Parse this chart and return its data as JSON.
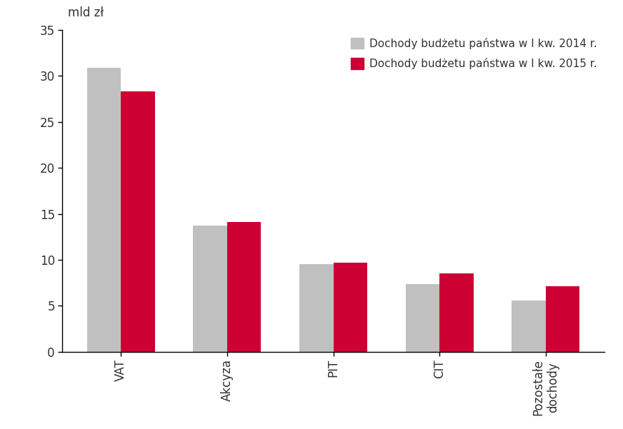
{
  "categories": [
    "VAT",
    "Akcyza",
    "PIT",
    "CIT",
    "Pozostałe\ndochody"
  ],
  "values_2014": [
    30.9,
    13.7,
    9.5,
    7.4,
    5.6
  ],
  "values_2015": [
    28.3,
    14.1,
    9.7,
    8.5,
    7.1
  ],
  "color_2014": "#c0c0c0",
  "color_2015": "#cc0033",
  "ylabel_text": "mld zł",
  "legend_2014": "Dochody budżetu państwa w I kw. 2014 r.",
  "legend_2015": "Dochody budżetu państwa w I kw. 2015 r.",
  "ylim": [
    0,
    35
  ],
  "yticks": [
    0,
    5,
    10,
    15,
    20,
    25,
    30,
    35
  ],
  "bar_width": 0.32,
  "background_color": "#ffffff",
  "tick_color": "#000000",
  "label_color": "#333333",
  "spine_color": "#000000"
}
